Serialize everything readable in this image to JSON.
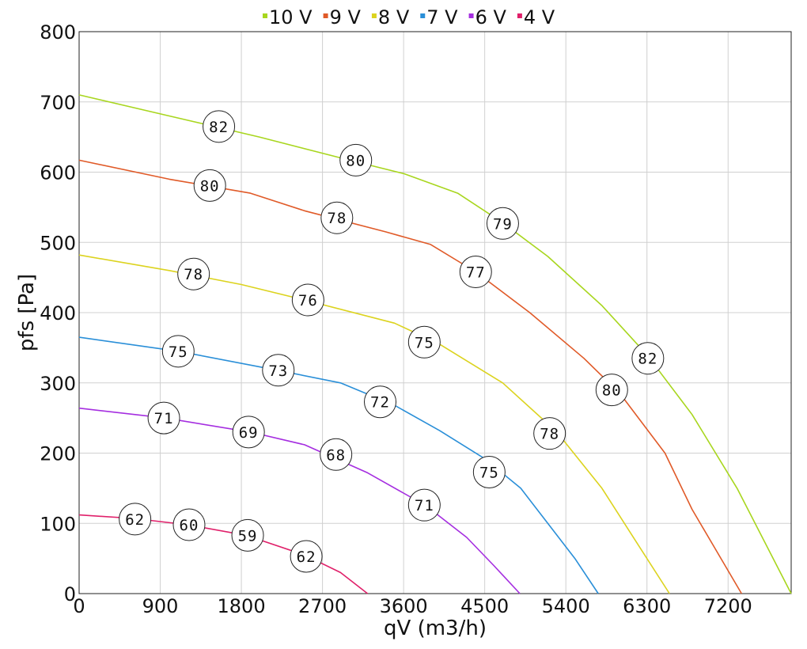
{
  "chart_data": {
    "type": "line",
    "xlabel": "qV (m3/h)",
    "ylabel": "pfs [Pa]",
    "xlim": [
      0,
      7900
    ],
    "ylim": [
      0,
      800
    ],
    "xticks": [
      0,
      900,
      1800,
      2700,
      3600,
      4500,
      5400,
      6300,
      7200
    ],
    "yticks": [
      0,
      100,
      200,
      300,
      400,
      500,
      600,
      700,
      800
    ],
    "grid": true,
    "legend_position": "top",
    "series": [
      {
        "name": "10 V",
        "color": "#a8d61e",
        "points": [
          [
            0,
            710
          ],
          [
            1000,
            680
          ],
          [
            2000,
            650
          ],
          [
            3000,
            617
          ],
          [
            3600,
            598
          ],
          [
            4200,
            570
          ],
          [
            4700,
            528
          ],
          [
            5200,
            480
          ],
          [
            5800,
            410
          ],
          [
            6300,
            340
          ],
          [
            6800,
            255
          ],
          [
            7300,
            150
          ],
          [
            7900,
            0
          ]
        ],
        "labels": [
          {
            "x": 1550,
            "y": 665,
            "text": "82"
          },
          {
            "x": 3070,
            "y": 617,
            "text": "80"
          },
          {
            "x": 4700,
            "y": 527,
            "text": "79"
          },
          {
            "x": 6310,
            "y": 335,
            "text": "82"
          }
        ]
      },
      {
        "name": "9 V",
        "color": "#e05a28",
        "points": [
          [
            0,
            617
          ],
          [
            1000,
            590
          ],
          [
            1900,
            570
          ],
          [
            2500,
            545
          ],
          [
            3400,
            515
          ],
          [
            3900,
            497
          ],
          [
            4400,
            458
          ],
          [
            5000,
            400
          ],
          [
            5600,
            335
          ],
          [
            6000,
            285
          ],
          [
            6500,
            200
          ],
          [
            6800,
            120
          ],
          [
            7350,
            0
          ]
        ],
        "labels": [
          {
            "x": 1450,
            "y": 581,
            "text": "80"
          },
          {
            "x": 2860,
            "y": 535,
            "text": "78"
          },
          {
            "x": 4400,
            "y": 458,
            "text": "77"
          },
          {
            "x": 5910,
            "y": 290,
            "text": "80"
          }
        ]
      },
      {
        "name": "8 V",
        "color": "#dcd31e",
        "points": [
          [
            0,
            482
          ],
          [
            1000,
            460
          ],
          [
            1800,
            440
          ],
          [
            2500,
            418
          ],
          [
            3500,
            385
          ],
          [
            4000,
            355
          ],
          [
            4700,
            300
          ],
          [
            5300,
            230
          ],
          [
            5800,
            150
          ],
          [
            6200,
            70
          ],
          [
            6550,
            0
          ]
        ],
        "labels": [
          {
            "x": 1270,
            "y": 455,
            "text": "78"
          },
          {
            "x": 2540,
            "y": 418,
            "text": "76"
          },
          {
            "x": 3830,
            "y": 358,
            "text": "75"
          },
          {
            "x": 5220,
            "y": 228,
            "text": "78"
          }
        ]
      },
      {
        "name": "7 V",
        "color": "#2a8fd8",
        "points": [
          [
            0,
            365
          ],
          [
            1100,
            345
          ],
          [
            2200,
            318
          ],
          [
            2900,
            300
          ],
          [
            3500,
            268
          ],
          [
            4000,
            232
          ],
          [
            4500,
            192
          ],
          [
            4900,
            150
          ],
          [
            5200,
            100
          ],
          [
            5500,
            50
          ],
          [
            5760,
            0
          ]
        ],
        "labels": [
          {
            "x": 1100,
            "y": 345,
            "text": "75"
          },
          {
            "x": 2210,
            "y": 318,
            "text": "73"
          },
          {
            "x": 3340,
            "y": 273,
            "text": "72"
          },
          {
            "x": 4550,
            "y": 173,
            "text": "75"
          }
        ]
      },
      {
        "name": "6 V",
        "color": "#a52ee0",
        "points": [
          [
            0,
            264
          ],
          [
            950,
            250
          ],
          [
            1900,
            230
          ],
          [
            2500,
            212
          ],
          [
            3200,
            172
          ],
          [
            3850,
            125
          ],
          [
            4300,
            80
          ],
          [
            4600,
            40
          ],
          [
            4890,
            0
          ]
        ],
        "labels": [
          {
            "x": 940,
            "y": 250,
            "text": "71"
          },
          {
            "x": 1880,
            "y": 230,
            "text": "69"
          },
          {
            "x": 2850,
            "y": 198,
            "text": "68"
          },
          {
            "x": 3830,
            "y": 126,
            "text": "71"
          }
        ]
      },
      {
        "name": "4 V",
        "color": "#e0206a",
        "points": [
          [
            0,
            112
          ],
          [
            600,
            107
          ],
          [
            1200,
            98
          ],
          [
            1850,
            83
          ],
          [
            2500,
            55
          ],
          [
            2900,
            30
          ],
          [
            3200,
            0
          ]
        ],
        "labels": [
          {
            "x": 620,
            "y": 106,
            "text": "62"
          },
          {
            "x": 1220,
            "y": 98,
            "text": "60"
          },
          {
            "x": 1870,
            "y": 83,
            "text": "59"
          },
          {
            "x": 2520,
            "y": 53,
            "text": "62"
          }
        ]
      }
    ]
  }
}
